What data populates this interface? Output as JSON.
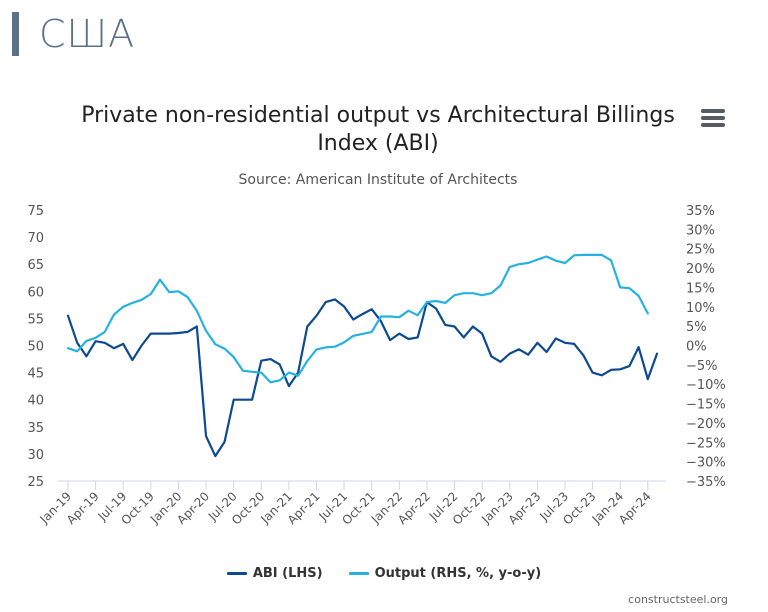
{
  "header": {
    "title": "США"
  },
  "menu": {
    "label": "Chart context menu"
  },
  "footer": {
    "credit": "constructsteel.org"
  },
  "colors": {
    "abi": "#0d4a91",
    "output": "#27b1e0",
    "header": "#5b7189"
  },
  "chart_data": {
    "type": "line",
    "title": "Private non-residential output vs Architectural Billings Index (ABI)",
    "title_lines": [
      "Private non-residential output vs Architectural Billings",
      "Index (ABI)"
    ],
    "subtitle": "Source: American Institute of Architects",
    "x_tick_labels": [
      "Jan-19",
      "Apr-19",
      "Jul-19",
      "Oct-19",
      "Jan-20",
      "Apr-20",
      "Jul-20",
      "Oct-20",
      "Jan-21",
      "Apr-21",
      "Jul-21",
      "Oct-21",
      "Jan-22",
      "Apr-22",
      "Jul-22",
      "Oct-22",
      "Jan-23",
      "Apr-23",
      "Jul-23",
      "Oct-23",
      "Jan-24",
      "Apr-24"
    ],
    "y_left": {
      "min": 25,
      "max": 75,
      "ticks": [
        "25",
        "30",
        "35",
        "40",
        "45",
        "50",
        "55",
        "60",
        "65",
        "70",
        "75"
      ]
    },
    "y_right": {
      "min": -35,
      "max": 35,
      "ticks": [
        "−35%",
        "−30%",
        "−25%",
        "−20%",
        "−15%",
        "−10%",
        "−5%",
        "0%",
        "5%",
        "10%",
        "15%",
        "20%",
        "25%",
        "30%",
        "35%"
      ]
    },
    "series": [
      {
        "name": "ABI (LHS)",
        "axis": "left",
        "values": [
          55.5,
          50.5,
          48,
          50.8,
          50.5,
          49.5,
          50.3,
          47.3,
          50,
          52.2,
          52.2,
          52.2,
          52.3,
          52.5,
          53.5,
          33.3,
          29.6,
          32.2,
          40,
          40,
          40,
          47.2,
          47.5,
          46.5,
          42.5,
          45,
          53.5,
          55.5,
          58,
          58.5,
          57.2,
          54.8,
          55.8,
          56.7,
          54.5,
          51,
          52.2,
          51.2,
          51.5,
          58,
          56.8,
          53.8,
          53.5,
          51.5,
          53.5,
          52.2,
          48,
          47,
          48.5,
          49.3,
          48.3,
          50.5,
          48.8,
          51.3,
          50.5,
          50.3,
          48.2,
          45,
          44.5,
          45.5,
          45.6,
          46.2,
          49.7,
          43.8,
          48.5
        ]
      },
      {
        "name": "Output (RHS, %, y-o-y)",
        "axis": "right",
        "values": [
          -0.7,
          -1.5,
          1.2,
          2,
          3.5,
          8,
          10,
          11,
          11.8,
          13.3,
          17,
          13.8,
          14,
          12.5,
          9,
          3.8,
          0.3,
          -0.8,
          -3,
          -6.5,
          -6.8,
          -7,
          -9.5,
          -9,
          -7,
          -7.8,
          -4,
          -1,
          -0.5,
          -0.3,
          0.8,
          2.5,
          3,
          3.5,
          7.5,
          7.5,
          7.3,
          9,
          7.8,
          11.2,
          11.5,
          11,
          13,
          13.5,
          13.5,
          13,
          13.5,
          15.5,
          20.3,
          21,
          21.3,
          22.2,
          23,
          21.9,
          21.3,
          23.3,
          23.4,
          23.4,
          23.4,
          22,
          15,
          14.8,
          12.8,
          8.3
        ]
      }
    ],
    "legend": [
      "ABI (LHS)",
      "Output (RHS, %, y-o-y)"
    ],
    "legend_position": "bottom-center"
  }
}
